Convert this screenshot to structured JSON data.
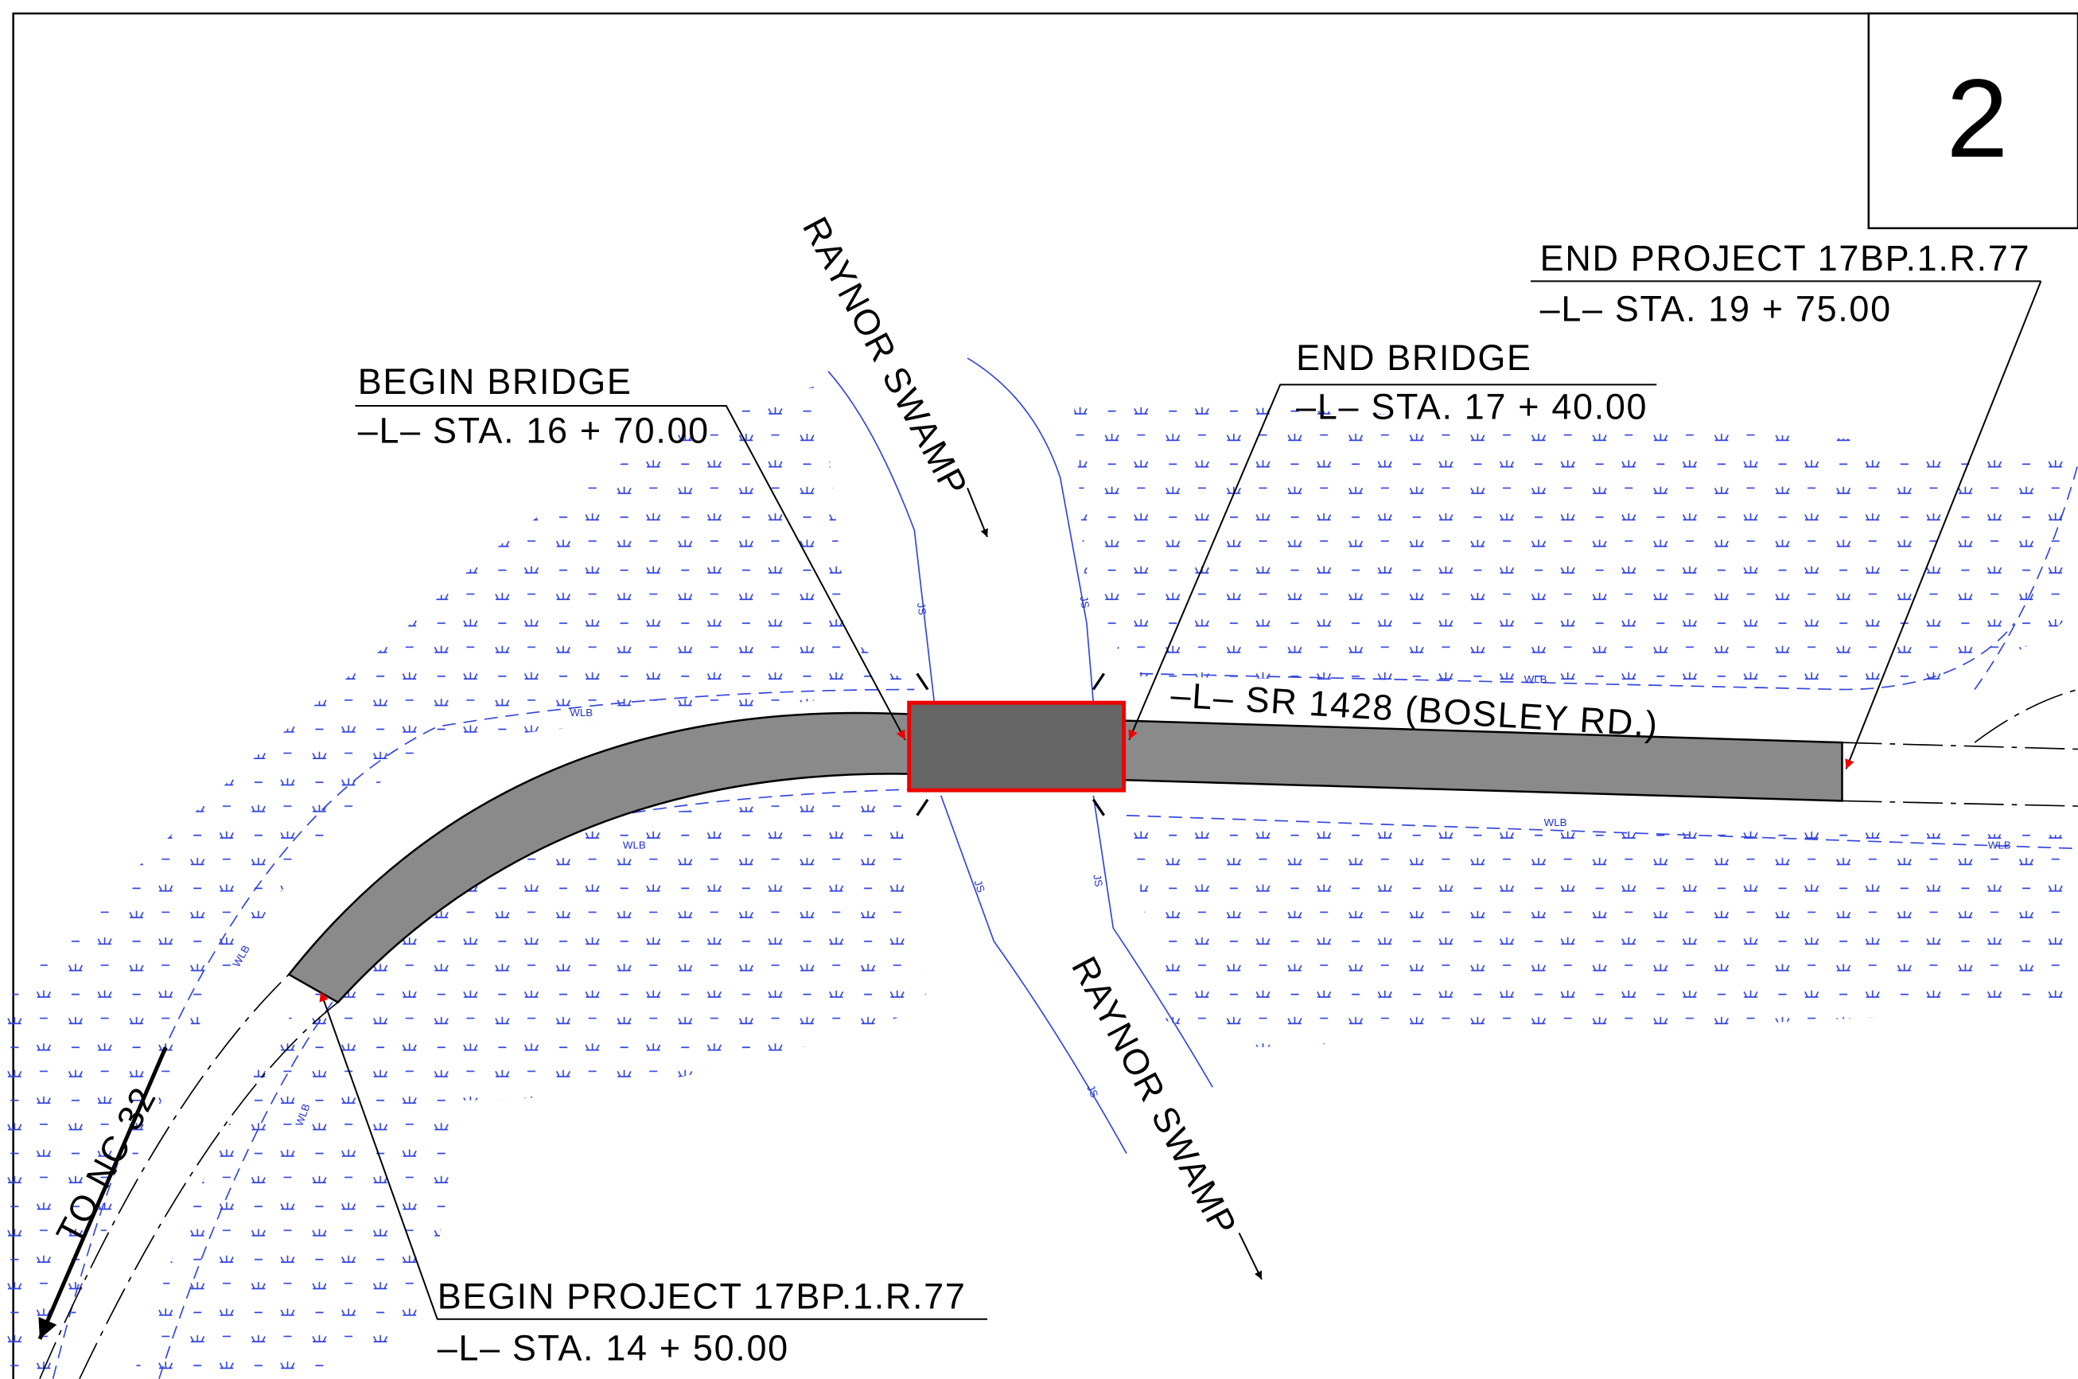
{
  "sheet_number": "2",
  "labels": {
    "begin_bridge": {
      "title": "BEGIN  BRIDGE",
      "station": "–L–  STA. 16 + 70.00"
    },
    "end_bridge": {
      "title": "END  BRIDGE",
      "station": "–L–  STA. 17 + 40.00"
    },
    "end_project": {
      "title": "END  PROJECT 17BP.1.R.77",
      "station": "–L–  STA. 19 + 75.00"
    },
    "begin_project": {
      "title": "BEGIN  PROJECT 17BP.1.R.77",
      "station": "–L–  STA. 14 + 50.00"
    },
    "road": "–L–  SR 1428  (BOSLEY RD.)",
    "direction": "TO  NC  32",
    "stream": "RAYNOR  SWAMP"
  },
  "line_labels": {
    "wetland": "WLB",
    "stream": "JS"
  }
}
